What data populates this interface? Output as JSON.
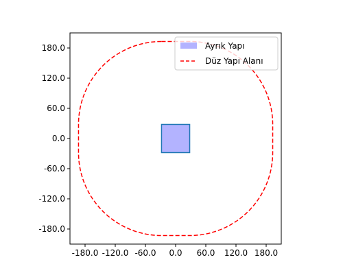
{
  "chart_data": {
    "type": "area",
    "xlim": [
      -210,
      210
    ],
    "ylim": [
      -210,
      210
    ],
    "x_ticks": [
      -180,
      -120,
      -60,
      0,
      60,
      120,
      180
    ],
    "y_ticks": [
      -180,
      -120,
      -60,
      0,
      60,
      120,
      180
    ],
    "x_tick_labels": [
      "-180.0",
      "-120.0",
      "-60.0",
      "0.0",
      "60.0",
      "120.0",
      "180.0"
    ],
    "y_tick_labels": [
      "-180.0",
      "-120.0",
      "-60.0",
      "0.0",
      "60.0",
      "120.0",
      "180.0"
    ],
    "grid": false,
    "legend_position": "top-right",
    "series": [
      {
        "name": "Ayrık Yapı",
        "kind": "filled-square",
        "fill_color": "#b3b3ff",
        "edge_color": "#1f77b4",
        "x_range": [
          -28,
          28
        ],
        "y_range": [
          -28,
          28
        ]
      },
      {
        "name": "Düz Yapı Alanı",
        "kind": "dashed-rounded-square",
        "color": "#ff0000",
        "half_width": 193,
        "corner_radius": 165
      }
    ]
  }
}
